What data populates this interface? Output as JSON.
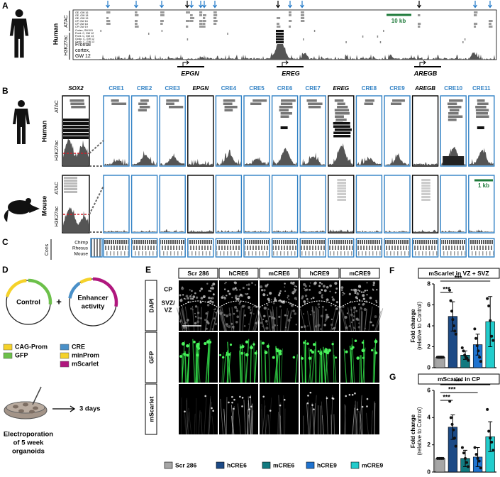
{
  "panel_labels": [
    "A",
    "B",
    "C",
    "D",
    "E",
    "F",
    "G"
  ],
  "panel_a": {
    "species": "Human",
    "atac_label": "ATAC",
    "h3k27ac_label": "H3K27ac",
    "atac_tracks": [
      "GE, GW 16",
      "GE, GW 18",
      "GE, GW 19",
      "CP, GW 16",
      "CP, GW 18",
      "CP, GW 19"
    ],
    "h3k27ac_tracks": [
      "Cortex, GW 8.5",
      "Front. C, GW 12",
      "Front. C, GW 13",
      "Occip. C, GW 12",
      "Occip. C, GW 13"
    ],
    "frontal_label": [
      "Frontal",
      "cortex,",
      "GW 12"
    ],
    "scale_bar": "10 kb",
    "genes": [
      "EPGN",
      "EREG",
      "AREGB"
    ]
  },
  "panel_b": {
    "columns": [
      "SOX2",
      "CRE1",
      "CRE2",
      "CRE3",
      "EPGN",
      "CRE4",
      "CRE5",
      "CRE6",
      "CRE7",
      "EREG",
      "CRE8",
      "CRE9",
      "AREGB",
      "CRE10",
      "CRE11"
    ],
    "human": "Human",
    "mouse": "Mouse",
    "atac_label": "ATAC",
    "h3k27ac_label": "H3K27ac",
    "scale_bar": "1 kb"
  },
  "panel_c": {
    "label": "Cons",
    "species": [
      "Chimp",
      "Rhesus",
      "Mouse"
    ]
  },
  "panel_d": {
    "control": "Control",
    "plus": "+",
    "enhancer": [
      "Enhancer",
      "activity"
    ],
    "legend": [
      {
        "name": "CAG-Prom",
        "color": "#f5d22a"
      },
      {
        "name": "CRE",
        "color": "#4a90c8"
      },
      {
        "name": "GFP",
        "color": "#6cc04a"
      },
      {
        "name": "minProm",
        "color": "#f5d22a"
      },
      {
        "name": "mScarlet",
        "color": "#b0177e"
      }
    ],
    "protocol": [
      "Electroporation",
      "of 5 week",
      "organoids"
    ],
    "duration": "3 days"
  },
  "panel_e": {
    "conditions": [
      "Scr 286",
      "hCRE6",
      "mCRE6",
      "hCRE9",
      "mCRE9"
    ],
    "stains": [
      "DAPI",
      "GFP",
      "mScarlet"
    ],
    "regions": [
      "CP",
      "SVZ/",
      "VZ"
    ],
    "legend": [
      {
        "name": "Scr 286",
        "color": "#a6a6a6"
      },
      {
        "name": "hCRE6",
        "color": "#1c4a86"
      },
      {
        "name": "mCRE6",
        "color": "#127a80"
      },
      {
        "name": "hCRE9",
        "color": "#1f73cf"
      },
      {
        "name": "mCRE9",
        "color": "#22cccc"
      }
    ]
  },
  "chart_data": [
    {
      "type": "bar",
      "title": "mScarlet in VZ + SVZ",
      "y_label": [
        "Fold change",
        "(relative to Control)"
      ],
      "categories": [
        null,
        null,
        null,
        null,
        null
      ],
      "colors": [
        "#a6a6a6",
        "#1c4a86",
        "#127a80",
        "#1f73cf",
        "#22cccc"
      ],
      "values": [
        1.0,
        4.9,
        1.2,
        2.2,
        4.4
      ],
      "errors": [
        0.1,
        1.4,
        0.4,
        1.0,
        2.4
      ],
      "points": [
        [
          1.0,
          1.0,
          1.0,
          1.0,
          1.0
        ],
        [
          7.4,
          6.4,
          5.4,
          4.6,
          4.0,
          3.5,
          3.2
        ],
        [
          1.9,
          1.6,
          1.2,
          1.0,
          0.9,
          0.7
        ],
        [
          3.7,
          2.8,
          2.1,
          1.6,
          1.0,
          0.6
        ],
        [
          6.6,
          5.9,
          4.5,
          3.0,
          2.6
        ]
      ],
      "ylim": [
        0,
        8
      ],
      "yticks": [
        0,
        2,
        4,
        6,
        8
      ],
      "annotations": [
        "***",
        "***"
      ]
    },
    {
      "type": "bar",
      "title": "mScarlet in CP",
      "y_label": [
        "Fold change",
        "(relative to Control)"
      ],
      "categories": [
        null,
        null,
        null,
        null,
        null
      ],
      "colors": [
        "#a6a6a6",
        "#1c4a86",
        "#127a80",
        "#1f73cf",
        "#22cccc"
      ],
      "values": [
        1.0,
        3.3,
        1.0,
        1.1,
        2.6
      ],
      "errors": [
        0.05,
        0.9,
        0.6,
        0.7,
        1.1
      ],
      "points": [
        [
          1.0,
          1.0,
          1.0,
          1.0
        ],
        [
          5.2,
          4.0,
          3.5,
          3.1,
          2.5,
          1.9
        ],
        [
          1.8,
          1.4,
          1.0,
          0.7,
          0.4
        ],
        [
          1.8,
          1.3,
          1.0,
          0.8,
          0.3
        ],
        [
          4.6,
          3.0,
          2.5,
          2.2,
          1.6
        ]
      ],
      "ylim": [
        0,
        6
      ],
      "yticks": [
        0,
        2,
        4,
        6
      ],
      "annotations": [
        "***",
        "***",
        "***"
      ]
    }
  ]
}
